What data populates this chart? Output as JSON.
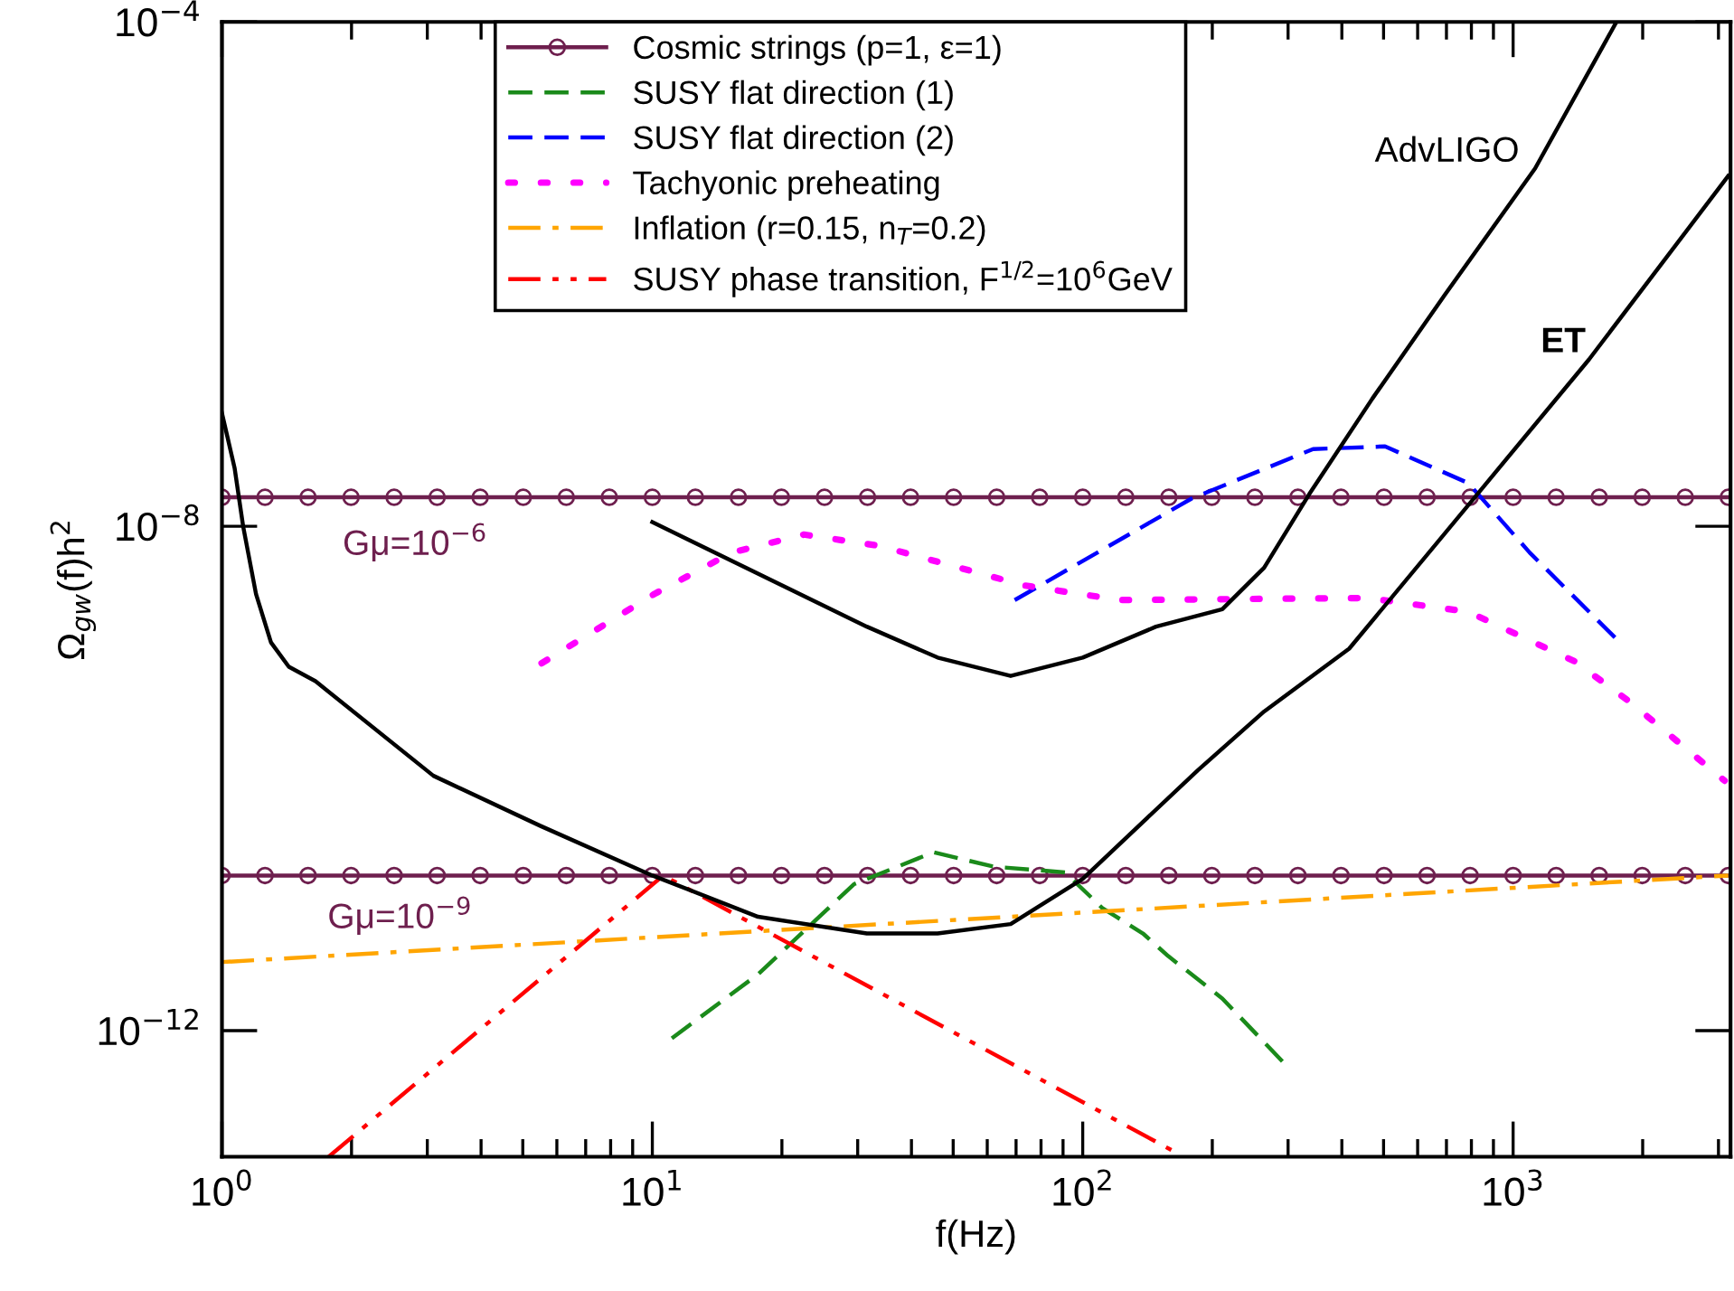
{
  "chart_data": {
    "type": "line",
    "xlabel": "f(Hz)",
    "ylabel": "Ω$_{gw}$(f)h$^{2}$",
    "log": "xy",
    "xlim": [
      1,
      3200
    ],
    "ylim": [
      1e-13,
      0.0001
    ],
    "xticks": [
      {
        "value": 1,
        "label": "10$^{0}$"
      },
      {
        "value": 10,
        "label": "10$^{1}$"
      },
      {
        "value": 100,
        "label": "10$^{2}$"
      },
      {
        "value": 1000,
        "label": "10$^{3}$"
      }
    ],
    "yticks": [
      {
        "value": 1e-12,
        "label": "10$^{−12}$"
      },
      {
        "value": 1e-08,
        "label": "10$^{−8}$"
      },
      {
        "value": 0.0001,
        "label": "10$^{−4}$"
      }
    ],
    "grid": false,
    "legend": "top",
    "series": [
      {
        "name": "Cosmic strings (p=1, ε=1)",
        "color": "#6e1f4e",
        "marker": "circle",
        "line_style": "solid",
        "x": [
          1,
          1.259,
          1.585,
          1.995,
          2.512,
          3.162,
          3.981,
          5.012,
          6.31,
          7.943,
          10,
          12.59,
          15.85,
          19.95,
          25.12,
          31.62,
          39.81,
          50.12,
          63.1,
          79.43,
          100,
          125.9,
          158.5,
          199.5,
          251.2,
          316.2,
          398.1,
          501.2,
          631,
          794.3,
          1000,
          1259,
          1585,
          1995,
          2512,
          3162
        ],
        "values": [
          1.7e-08,
          1.7e-08,
          1.7e-08,
          1.7e-08,
          1.7e-08,
          1.7e-08,
          1.7e-08,
          1.7e-08,
          1.7e-08,
          1.7e-08,
          1.7e-08,
          1.7e-08,
          1.7e-08,
          1.7e-08,
          1.7e-08,
          1.7e-08,
          1.7e-08,
          1.7e-08,
          1.7e-08,
          1.7e-08,
          1.7e-08,
          1.7e-08,
          1.7e-08,
          1.7e-08,
          1.7e-08,
          1.7e-08,
          1.7e-08,
          1.7e-08,
          1.7e-08,
          1.7e-08,
          1.7e-08,
          1.7e-08,
          1.7e-08,
          1.7e-08,
          1.7e-08,
          1.7e-08
        ]
      },
      {
        "color": "#6e1f4e",
        "marker": "circle",
        "line_style": "solid",
        "x": [
          1,
          1.259,
          1.585,
          1.995,
          2.512,
          3.162,
          3.981,
          5.012,
          6.31,
          7.943,
          10,
          12.59,
          15.85,
          19.95,
          25.12,
          31.62,
          39.81,
          50.12,
          63.1,
          79.43,
          100,
          125.9,
          158.5,
          199.5,
          251.2,
          316.2,
          398.1,
          501.2,
          631,
          794.3,
          1000,
          1259,
          1585,
          1995,
          2512,
          3162
        ],
        "values": [
          1.7e-11,
          1.7e-11,
          1.7e-11,
          1.7e-11,
          1.7e-11,
          1.7e-11,
          1.7e-11,
          1.7e-11,
          1.7e-11,
          1.7e-11,
          1.7e-11,
          1.7e-11,
          1.7e-11,
          1.7e-11,
          1.7e-11,
          1.7e-11,
          1.7e-11,
          1.7e-11,
          1.7e-11,
          1.7e-11,
          1.7e-11,
          1.7e-11,
          1.7e-11,
          1.7e-11,
          1.7e-11,
          1.7e-11,
          1.7e-11,
          1.7e-11,
          1.7e-11,
          1.7e-11,
          1.7e-11,
          1.7e-11,
          1.7e-11,
          1.7e-11,
          1.7e-11,
          1.7e-11
        ]
      },
      {
        "name": "SUSY flat direction (1)",
        "color": "#1a8a1a",
        "line_style": "dashed",
        "x": [
          11.1,
          17.6,
          29.4,
          45,
          62,
          91,
          111,
          138,
          158,
          211,
          291
        ],
        "values": [
          8.7e-13,
          2.8e-12,
          1.45e-11,
          2.6e-11,
          2e-11,
          1.8e-11,
          9.4e-12,
          5.9e-12,
          3.9e-12,
          1.8e-12,
          5.7e-13
        ]
      },
      {
        "name": "SUSY flat direction (2)",
        "color": "#0000ff",
        "line_style": "dashed",
        "x": [
          69.5,
          179,
          343,
          504,
          787,
          1092,
          1770
        ],
        "values": [
          2.6e-09,
          1.66e-08,
          4.1e-08,
          4.3e-08,
          2.2e-08,
          6.2e-09,
          1.2e-09
        ]
      },
      {
        "name": "Tachyonic preheating",
        "color": "#ff00ff",
        "line_style": "dotted",
        "x": [
          5.53,
          10.1,
          15.3,
          22.5,
          33.7,
          73,
          122,
          458,
          787,
          1390,
          1876,
          3100
        ],
        "values": [
          8.2e-10,
          2.9e-09,
          6.2e-09,
          8.6e-09,
          7e-09,
          3.4e-09,
          2.6e-09,
          2.7e-09,
          2.1e-09,
          8.5e-10,
          4e-10,
          9.6e-11
        ]
      },
      {
        "name": "Inflation (r=0.15, n$_{T}$=0.2)",
        "color": "#ffa500",
        "line_style": "dashdot",
        "x": [
          1,
          3162
        ],
        "values": [
          3.5e-12,
          1.7e-11
        ]
      },
      {
        "name": "SUSY phase transition, F$^{1/2}$=10$^{6}$GeV",
        "color": "#ff0000",
        "line_style": "dashdotdot",
        "x": [
          1.77,
          10.6,
          163
        ],
        "values": [
          1e-13,
          1.7e-11,
          1.1e-13
        ]
      },
      {
        "color": "#000000",
        "line_style": "solid",
        "x": [
          10,
          31.5,
          46,
          68,
          100,
          148,
          211,
          264,
          336,
          471,
          693,
          1125,
          1738
        ],
        "values": [
          1.08e-08,
          1.6e-09,
          9.1e-10,
          6.5e-10,
          9.1e-10,
          1.6e-09,
          2.2e-09,
          4.7e-09,
          1.8e-08,
          1.03e-07,
          6.8e-07,
          6.9e-06,
          0.0001
        ]
      },
      {
        "color": "#000000",
        "line_style": "solid",
        "x": [
          1,
          1.07,
          1.12,
          1.2,
          1.3,
          1.43,
          1.65,
          3.1,
          5.5,
          10,
          17.6,
          31.5,
          46,
          68,
          100,
          185,
          264,
          416,
          826,
          1500,
          3160
        ],
        "values": [
          7.9e-08,
          2.9e-08,
          1e-08,
          2.9e-09,
          1.2e-09,
          7.7e-10,
          5.9e-10,
          1.05e-10,
          4.2e-11,
          1.7e-11,
          8e-12,
          5.9e-12,
          5.9e-12,
          7e-12,
          1.6e-11,
          1.16e-10,
          3.4e-10,
          1.07e-09,
          1.8e-08,
          2.1e-07,
          6e-06
        ]
      }
    ],
    "annotations": [
      "AdvLIGO",
      "ET",
      "Gμ=10$^{−6}$",
      "Gμ=10$^{−9}$"
    ]
  }
}
